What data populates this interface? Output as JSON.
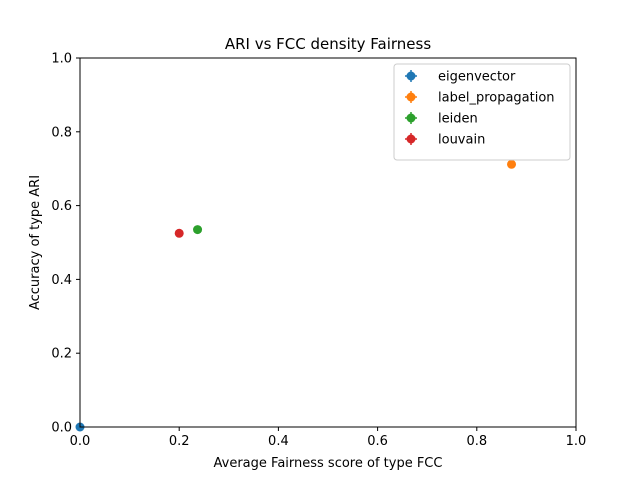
{
  "chart_data": {
    "type": "scatter",
    "title": "ARI vs FCC density Fairness",
    "xlabel": "Average Fairness score of type FCC",
    "ylabel": "Accuracy of type ARI",
    "xlim": [
      0,
      1
    ],
    "ylim": [
      0,
      1
    ],
    "xticks": [
      "0.0",
      "0.2",
      "0.4",
      "0.6",
      "0.8",
      "1.0"
    ],
    "yticks": [
      "0.0",
      "0.2",
      "0.4",
      "0.6",
      "0.8",
      "1.0"
    ],
    "grid": false,
    "legend_position": "top-right",
    "series": [
      {
        "name": "eigenvector",
        "color": "#1f77b4",
        "points": [
          {
            "x": 0.0,
            "y": 0.0
          }
        ]
      },
      {
        "name": "label_propagation",
        "color": "#ff7f0e",
        "points": [
          {
            "x": 0.87,
            "y": 0.712
          }
        ]
      },
      {
        "name": "leiden",
        "color": "#2ca02c",
        "points": [
          {
            "x": 0.237,
            "y": 0.535
          }
        ]
      },
      {
        "name": "louvain",
        "color": "#d62728",
        "points": [
          {
            "x": 0.2,
            "y": 0.525
          }
        ]
      }
    ]
  }
}
